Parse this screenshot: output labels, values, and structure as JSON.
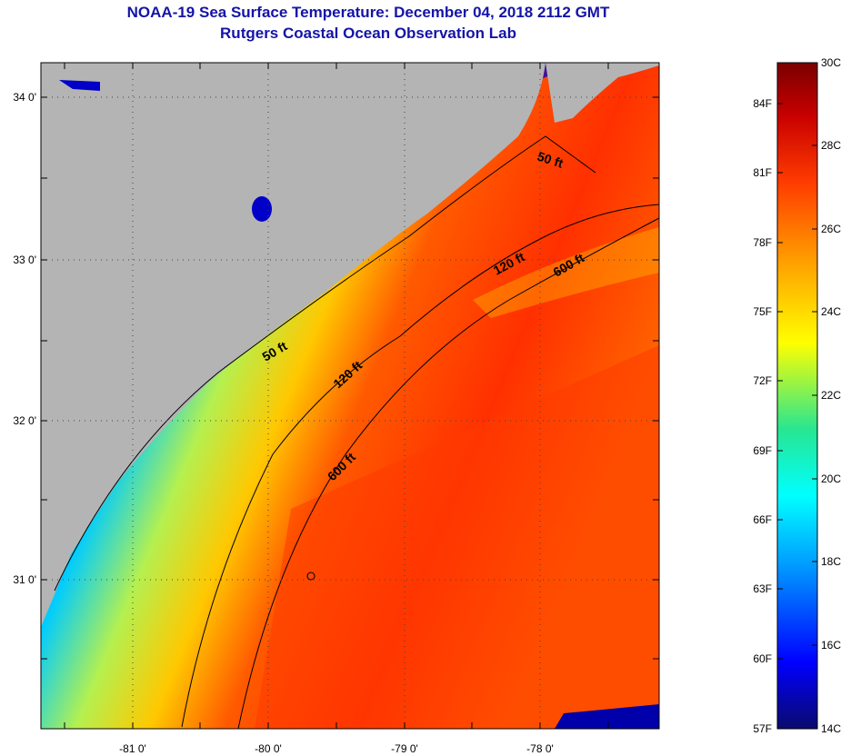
{
  "header": {
    "title": "NOAA-19 Sea Surface Temperature:  December 04, 2018 2112 GMT",
    "subtitle": "Rutgers Coastal Ocean Observation Lab"
  },
  "map": {
    "longitude_labels": [
      "-81 0'",
      "-80 0'",
      "-79 0'",
      "-78 0'"
    ],
    "latitude_labels": [
      "34 0'",
      "33 0'",
      "32 0'",
      "31 0'"
    ],
    "lon_range": [
      -81.7,
      -77.1
    ],
    "lat_range": [
      30.2,
      34.2
    ],
    "land_color": "#b4b4b4",
    "gridlines": "dotted"
  },
  "contours": [
    {
      "label": "50 ft",
      "depth_ft": 50
    },
    {
      "label": "120 ft",
      "depth_ft": 120
    },
    {
      "label": "600 ft",
      "depth_ft": 600
    }
  ],
  "colorbar": {
    "fahrenheit_labels": [
      "84F",
      "81F",
      "78F",
      "75F",
      "72F",
      "69F",
      "66F",
      "63F",
      "60F",
      "57F"
    ],
    "celsius_labels": [
      "30C",
      "28C",
      "26C",
      "24C",
      "22C",
      "20C",
      "18C",
      "16C",
      "14C"
    ],
    "range_c": [
      14,
      30
    ],
    "colors": [
      "#0a0a6e",
      "#0000ff",
      "#00a0ff",
      "#00ffff",
      "#28e690",
      "#ffff00",
      "#ffa000",
      "#ff3c00",
      "#c80000",
      "#7a0000"
    ]
  }
}
